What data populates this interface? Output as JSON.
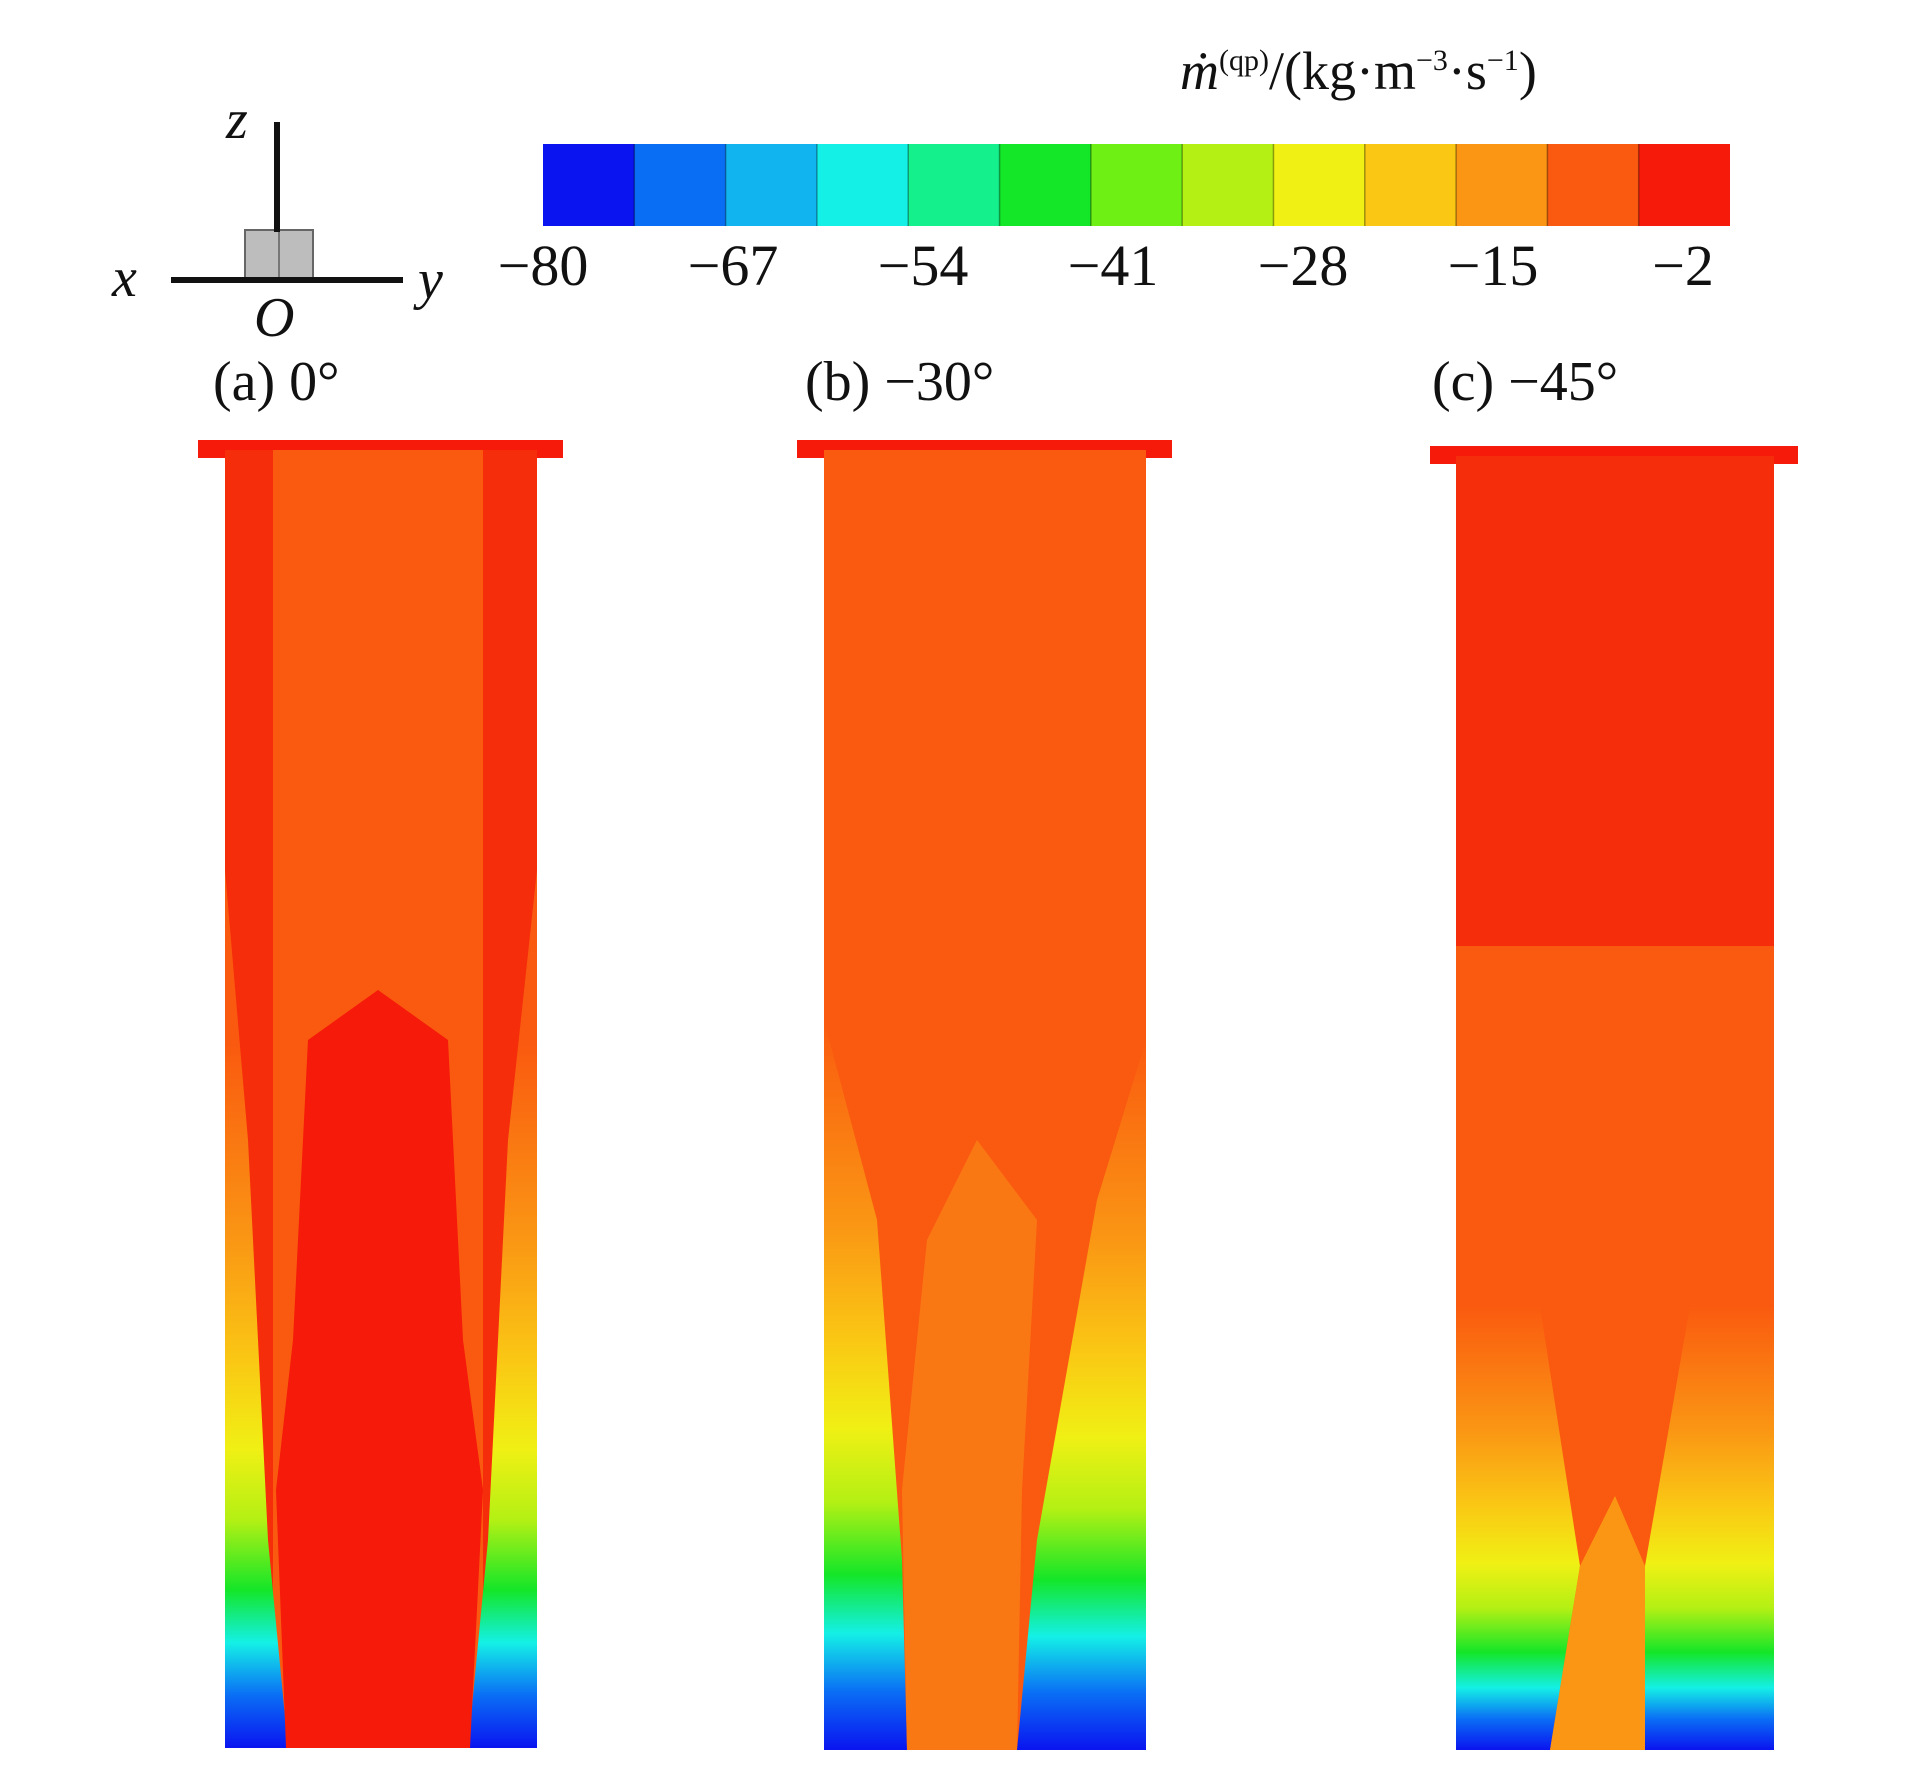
{
  "chart_data": {
    "type": "heatmap",
    "colorbar": {
      "title_main": "ṁ",
      "title_sup": "(qp)",
      "title_unit_prefix": "/(kg·m",
      "title_unit_sup1": "−3",
      "title_unit_mid": "·s",
      "title_unit_sup2": "−1",
      "title_unit_suffix": ")",
      "ticks": [
        "−80",
        "−67",
        "−54",
        "−41",
        "−28",
        "−15",
        "−2"
      ],
      "tick_values": [
        -80,
        -67,
        -54,
        -41,
        -28,
        -15,
        -2
      ],
      "range": [
        -80,
        0
      ],
      "levels": 13,
      "colors": [
        "#0a14f0",
        "#0a6ef5",
        "#12b4f0",
        "#14f0e6",
        "#14f08c",
        "#14e628",
        "#6ef014",
        "#b4f014",
        "#f0f014",
        "#fac814",
        "#fa9614",
        "#fa5a0f",
        "#f51a0a"
      ]
    },
    "axes_glyph": {
      "z": "z",
      "x": "x",
      "y": "y",
      "origin": "O"
    },
    "panels": [
      {
        "label": "(a) 0°",
        "angle_deg": 0
      },
      {
        "label": "(b) −30°",
        "angle_deg": -30
      },
      {
        "label": "(c) −45°",
        "angle_deg": -45
      }
    ]
  }
}
